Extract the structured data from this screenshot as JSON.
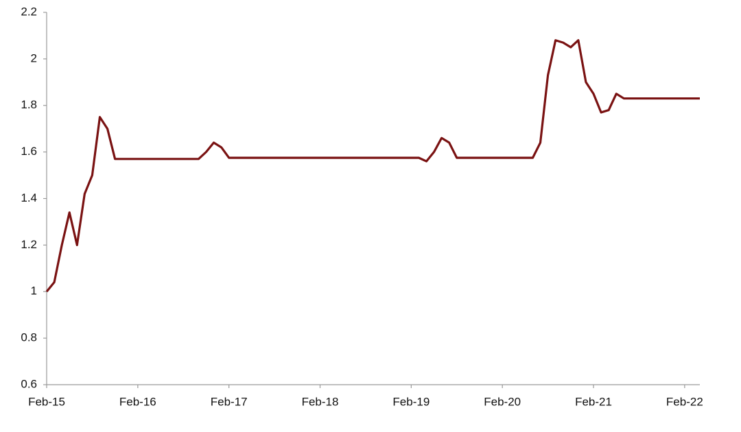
{
  "chart_data": {
    "type": "line",
    "x": [
      "Feb-15",
      "Mar-15",
      "Apr-15",
      "May-15",
      "Jun-15",
      "Jul-15",
      "Aug-15",
      "Sep-15",
      "Oct-15",
      "Nov-15",
      "Dec-15",
      "Jan-16",
      "Feb-16",
      "Mar-16",
      "Apr-16",
      "May-16",
      "Jun-16",
      "Jul-16",
      "Aug-16",
      "Sep-16",
      "Oct-16",
      "Nov-16",
      "Dec-16",
      "Jan-17",
      "Feb-17",
      "Mar-17",
      "Apr-17",
      "May-17",
      "Jun-17",
      "Jul-17",
      "Aug-17",
      "Sep-17",
      "Oct-17",
      "Nov-17",
      "Dec-17",
      "Jan-18",
      "Feb-18",
      "Mar-18",
      "Apr-18",
      "May-18",
      "Jun-18",
      "Jul-18",
      "Aug-18",
      "Sep-18",
      "Oct-18",
      "Nov-18",
      "Dec-18",
      "Jan-19",
      "Feb-19",
      "Mar-19",
      "Apr-19",
      "May-19",
      "Jun-19",
      "Jul-19",
      "Aug-19",
      "Sep-19",
      "Oct-19",
      "Nov-19",
      "Dec-19",
      "Jan-20",
      "Feb-20",
      "Mar-20",
      "Apr-20",
      "May-20",
      "Jun-20",
      "Jul-20",
      "Aug-20",
      "Sep-20",
      "Oct-20",
      "Nov-20",
      "Dec-20",
      "Jan-21",
      "Feb-21",
      "Mar-21",
      "Apr-21",
      "May-21",
      "Jun-21",
      "Jul-21",
      "Aug-21",
      "Sep-21",
      "Oct-21",
      "Nov-21",
      "Dec-21",
      "Jan-22",
      "Feb-22",
      "Mar-22",
      "Apr-22"
    ],
    "series": [
      {
        "color": "#7a1212",
        "values": [
          1.0,
          1.04,
          1.2,
          1.34,
          1.2,
          1.42,
          1.5,
          1.75,
          1.7,
          1.57,
          1.57,
          1.57,
          1.57,
          1.57,
          1.57,
          1.57,
          1.57,
          1.57,
          1.57,
          1.57,
          1.57,
          1.6,
          1.64,
          1.62,
          1.575,
          1.575,
          1.575,
          1.575,
          1.575,
          1.575,
          1.575,
          1.575,
          1.575,
          1.575,
          1.575,
          1.575,
          1.575,
          1.575,
          1.575,
          1.575,
          1.575,
          1.575,
          1.575,
          1.575,
          1.575,
          1.575,
          1.575,
          1.575,
          1.575,
          1.575,
          1.56,
          1.6,
          1.66,
          1.64,
          1.575,
          1.575,
          1.575,
          1.575,
          1.575,
          1.575,
          1.575,
          1.575,
          1.575,
          1.575,
          1.575,
          1.64,
          1.93,
          2.08,
          2.07,
          2.05,
          2.08,
          1.9,
          1.85,
          1.77,
          1.78,
          1.85,
          1.83,
          1.83,
          1.83,
          1.83,
          1.83,
          1.83,
          1.83,
          1.83,
          1.83,
          1.83,
          1.83
        ]
      }
    ],
    "xlim": [
      "Feb-15",
      "Apr-22"
    ],
    "xticks": [
      "Feb-15",
      "Feb-16",
      "Feb-17",
      "Feb-18",
      "Feb-19",
      "Feb-20",
      "Feb-21",
      "Feb-22"
    ],
    "ylim": [
      0.6,
      2.2
    ],
    "yticks": [
      0.6,
      0.8,
      1,
      1.2,
      1.4,
      1.6,
      1.8,
      2,
      2.2
    ],
    "grid": false
  }
}
